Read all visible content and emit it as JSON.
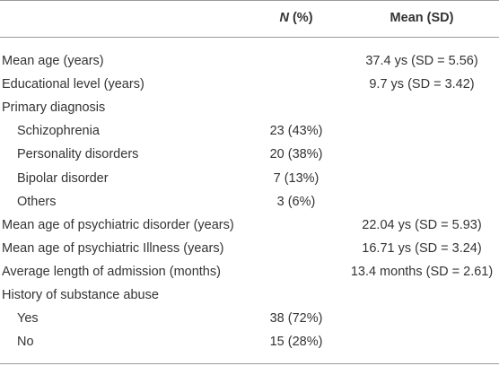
{
  "table": {
    "header": [
      "N (%)",
      "Mean (SD)"
    ],
    "rows": [
      {
        "label": "Mean age (years)",
        "mean": "37.4 ys (SD = 5.56)"
      },
      {
        "label": "Educational level (years)",
        "mean": "9.7 ys (SD = 3.42)"
      },
      {
        "label": "Primary diagnosis"
      },
      {
        "label": "Schizophrenia",
        "n": "23 (43%)",
        "sub": true
      },
      {
        "label": "Personality disorders",
        "n": "20 (38%)",
        "sub": true
      },
      {
        "label": "Bipolar disorder",
        "n": "7 (13%)",
        "sub": true
      },
      {
        "label": "Others",
        "n": "3 (6%)",
        "sub": true
      },
      {
        "label": "Mean age of psychiatric disorder (years)",
        "mean": "22.04 ys (SD = 5.93)"
      },
      {
        "label": "Mean age of psychiatric Illness (years)",
        "mean": "16.71 ys (SD = 3.24)"
      },
      {
        "label": "Average length of admission (months)",
        "mean": "13.4 months (SD = 2.61)"
      },
      {
        "label": "History of substance abuse"
      },
      {
        "label": "Yes",
        "n": "38 (72%)",
        "sub": true
      },
      {
        "label": "No",
        "n": "15 (28%)",
        "sub": true
      }
    ]
  }
}
